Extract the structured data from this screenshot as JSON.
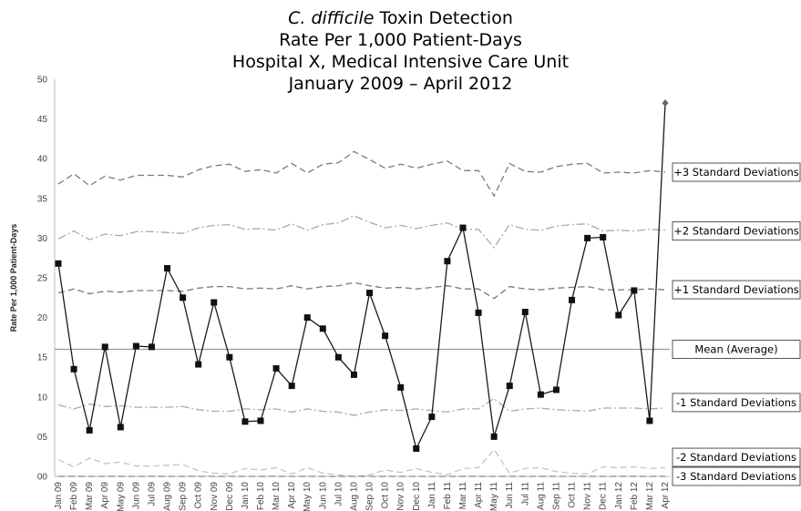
{
  "title": {
    "italic_part": "C. difficile",
    "first_line_rest": " Toxin Detection",
    "line2": "Rate Per 1,000 Patient-Days",
    "line3": "Hospital X, Medical Intensive Care Unit",
    "line4": "January 2009 – April 2012"
  },
  "chart_data": {
    "type": "line",
    "ylabel": "Rate Per 1,000 Patient-Days",
    "ylim": [
      0,
      50
    ],
    "yticks": [
      "00",
      "05",
      "10",
      "15",
      "20",
      "25",
      "30",
      "35",
      "40",
      "45",
      "50"
    ],
    "categories": [
      "Jan 09",
      "Feb 09",
      "Mar 09",
      "Apr 09",
      "May 09",
      "Jun 09",
      "Jul 09",
      "Aug 09",
      "Sep 09",
      "Oct 09",
      "Nov 09",
      "Dec 09",
      "Jan 10",
      "Feb 10",
      "Mar 10",
      "Apr 10",
      "May 10",
      "Jun 10",
      "Jul 10",
      "Aug 10",
      "Sep 10",
      "Oct 10",
      "Nov 10",
      "Dec 10",
      "Jan 11",
      "Feb 11",
      "Mar 11",
      "Apr 11",
      "May 11",
      "Jun 11",
      "Jul 11",
      "Aug 11",
      "Sep 11",
      "Oct 11",
      "Nov 11",
      "Dec 11",
      "Jan 12",
      "Feb 12",
      "Mar 12",
      "Apr 12"
    ],
    "grid": false,
    "mean": 16,
    "series": [
      {
        "name": "",
        "style": "solid-square-markers",
        "color": "#1a1a1a",
        "values": [
          26.8,
          13.5,
          5.8,
          16.3,
          6.2,
          16.4,
          16.3,
          26.2,
          22.5,
          14.1,
          21.9,
          15.0,
          6.9,
          7.0,
          13.6,
          11.4,
          20.0,
          18.6,
          15.0,
          12.8,
          23.1,
          17.7,
          11.2,
          3.5,
          7.5,
          27.1,
          31.3,
          20.6,
          5.0,
          11.4,
          20.7,
          10.3,
          10.9,
          22.2,
          30.0,
          30.1,
          20.3,
          23.4,
          7.0,
          47.0
        ],
        "last_point_marker": "diamond"
      },
      {
        "name": "+3 Standard Deviations",
        "style": "dashed",
        "color": "#7a7a7a",
        "values": [
          36.8,
          38.1,
          36.6,
          37.8,
          37.3,
          37.9,
          37.9,
          37.9,
          37.7,
          38.6,
          39.1,
          39.3,
          38.4,
          38.6,
          38.2,
          39.4,
          38.2,
          39.3,
          39.5,
          40.9,
          39.9,
          38.8,
          39.3,
          38.8,
          39.3,
          39.7,
          38.5,
          38.5,
          35.3,
          39.4,
          38.4,
          38.3,
          39.0,
          39.3,
          39.4,
          38.2,
          38.3,
          38.2,
          38.5,
          38.3
        ]
      },
      {
        "name": "+2 Standard Deviations",
        "style": "dash-dot",
        "color": "#aaaaaa",
        "values": [
          29.9,
          30.9,
          29.8,
          30.5,
          30.3,
          30.8,
          30.8,
          30.7,
          30.6,
          31.3,
          31.6,
          31.7,
          31.1,
          31.2,
          31.0,
          31.8,
          31.0,
          31.7,
          31.9,
          32.8,
          32.0,
          31.3,
          31.6,
          31.2,
          31.6,
          31.9,
          31.1,
          31.1,
          28.8,
          31.7,
          31.1,
          31.0,
          31.5,
          31.7,
          31.8,
          30.9,
          31.0,
          30.9,
          31.1,
          31.0
        ]
      },
      {
        "name": "+1 Standard Deviations",
        "style": "dashed",
        "color": "#7a7a7a",
        "values": [
          23.1,
          23.6,
          23.0,
          23.3,
          23.2,
          23.4,
          23.4,
          23.4,
          23.3,
          23.7,
          23.9,
          23.9,
          23.6,
          23.7,
          23.6,
          24.0,
          23.6,
          23.9,
          24.0,
          24.4,
          24.0,
          23.7,
          23.8,
          23.6,
          23.8,
          24.0,
          23.6,
          23.6,
          22.4,
          23.9,
          23.6,
          23.5,
          23.7,
          23.8,
          23.9,
          23.5,
          23.5,
          23.5,
          23.6,
          23.5
        ]
      },
      {
        "name": "-1 Standard Deviations",
        "style": "dash-dot",
        "color": "#aaaaaa",
        "values": [
          9.0,
          8.5,
          9.1,
          8.8,
          8.9,
          8.7,
          8.7,
          8.7,
          8.8,
          8.4,
          8.2,
          8.2,
          8.5,
          8.4,
          8.5,
          8.1,
          8.5,
          8.2,
          8.1,
          7.7,
          8.1,
          8.4,
          8.3,
          8.5,
          8.3,
          8.1,
          8.5,
          8.5,
          9.8,
          8.2,
          8.5,
          8.6,
          8.4,
          8.3,
          8.2,
          8.6,
          8.6,
          8.6,
          8.5,
          8.6
        ]
      },
      {
        "name": "-2 Standard Deviations",
        "style": "dashed",
        "color": "#c4c4c4",
        "values": [
          2.1,
          1.2,
          2.3,
          1.6,
          1.8,
          1.3,
          1.3,
          1.4,
          1.5,
          0.7,
          0.4,
          0.3,
          1.0,
          0.8,
          1.1,
          0.3,
          1.1,
          0.4,
          0.2,
          0.0,
          0.2,
          0.8,
          0.5,
          1.0,
          0.5,
          0.2,
          1.0,
          1.1,
          3.4,
          0.4,
          1.0,
          1.1,
          0.6,
          0.4,
          0.3,
          1.2,
          1.1,
          1.2,
          1.0,
          1.1
        ]
      },
      {
        "name": "-3 Standard Deviations",
        "style": "dashed",
        "color": "#888888",
        "values": [
          0,
          0,
          0,
          0,
          0,
          0,
          0,
          0,
          0,
          0,
          0,
          0,
          0,
          0,
          0,
          0,
          0,
          0,
          0,
          0,
          0,
          0,
          0,
          0,
          0,
          0,
          0,
          0,
          0,
          0,
          0,
          0,
          0,
          0,
          0,
          0,
          0,
          0,
          0,
          0
        ]
      }
    ],
    "annotations": [
      {
        "label": "+3 Standard Deviations",
        "y": 38.3
      },
      {
        "label": "+2 Standard Deviations",
        "y": 30.9
      },
      {
        "label": "+1 Standard Deviations",
        "y": 23.5
      },
      {
        "label": "Mean (Average)",
        "y": 16.0
      },
      {
        "label": "-1 Standard Deviations",
        "y": 9.3
      },
      {
        "label": "-2 Standard Deviations",
        "y": 2.4
      },
      {
        "label": "-3 Standard Deviations",
        "y": 0.0
      }
    ],
    "colors": {
      "axis": "#bdbdbd",
      "mean": "#9a9a9a",
      "box_border": "#555555"
    }
  }
}
